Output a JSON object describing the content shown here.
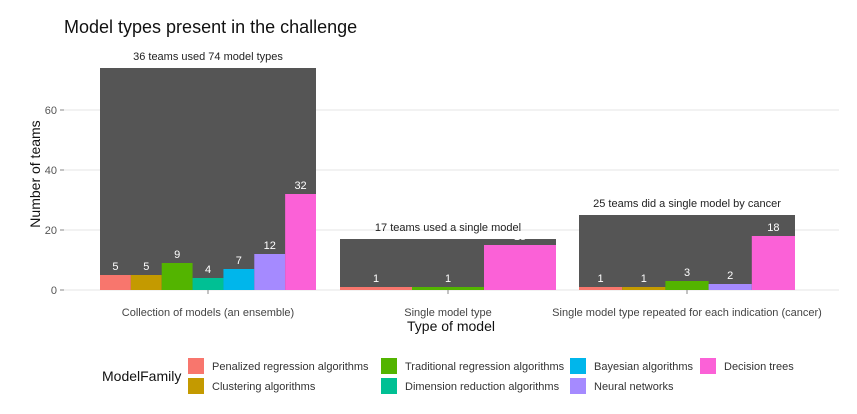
{
  "chart_data": {
    "type": "bar",
    "title": "Model types present in the challenge",
    "xlabel": "Type of model",
    "ylabel": "Number of teams",
    "ylim": [
      0,
      75
    ],
    "yticks": [
      0,
      20,
      40,
      60
    ],
    "grid": true,
    "legend_title": "ModelFamily",
    "legend_position": "bottom",
    "categories": [
      "Collection of models (an ensemble)",
      "Single model type",
      "Single model type repeated for each indication (cancer)"
    ],
    "background_bars": {
      "values": [
        74,
        17,
        25
      ],
      "annotations": [
        "36 teams used 74 model types",
        "17 teams used a single model",
        "25 teams did a single model by cancer"
      ],
      "color": "#555555"
    },
    "series": [
      {
        "name": "Penalized regression algorithms",
        "color": "#F8766D",
        "values": [
          5,
          1,
          1
        ]
      },
      {
        "name": "Clustering algorithms",
        "color": "#C49A00",
        "values": [
          5,
          null,
          1
        ]
      },
      {
        "name": "Traditional regression algorithms",
        "color": "#53B400",
        "values": [
          9,
          1,
          3
        ]
      },
      {
        "name": "Dimension reduction algorithms",
        "color": "#00C094",
        "values": [
          4,
          null,
          null
        ]
      },
      {
        "name": "Bayesian algorithms",
        "color": "#00B6EB",
        "values": [
          7,
          null,
          null
        ]
      },
      {
        "name": "Neural networks",
        "color": "#A58AFF",
        "values": [
          12,
          null,
          2
        ]
      },
      {
        "name": "Decision trees",
        "color": "#FB61D7",
        "values": [
          32,
          15,
          18
        ]
      }
    ]
  }
}
